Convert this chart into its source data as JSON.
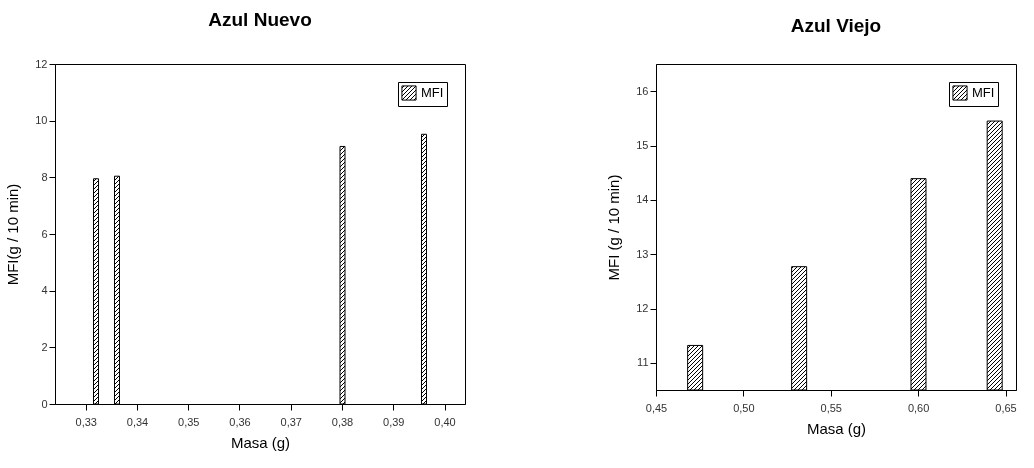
{
  "chart_data": [
    {
      "type": "bar",
      "title": "Azul Nuevo",
      "xlabel": "Masa (g)",
      "ylabel": "MFI(g / 10 min)",
      "x": [
        0.332,
        0.3361,
        0.3801,
        0.396
      ],
      "series": [
        {
          "name": "MFI",
          "color": "#000000",
          "values": [
            7.95,
            8.04,
            9.09,
            9.52
          ]
        }
      ],
      "xlim": [
        0.324,
        0.404
      ],
      "xticks": [
        {
          "value": 0.33,
          "label": "0,33"
        },
        {
          "value": 0.34,
          "label": "0,34"
        },
        {
          "value": 0.35,
          "label": "0,35"
        },
        {
          "value": 0.36,
          "label": "0,36"
        },
        {
          "value": 0.37,
          "label": "0,37"
        },
        {
          "value": 0.38,
          "label": "0,38"
        },
        {
          "value": 0.39,
          "label": "0,39"
        },
        {
          "value": 0.4,
          "label": "0,40"
        }
      ],
      "ylim": [
        0,
        12
      ],
      "yticks": [
        0,
        2,
        4,
        6,
        8,
        10,
        12
      ],
      "legend": "top right",
      "grid": false
    },
    {
      "type": "bar",
      "title": "Azul Viejo",
      "xlabel": "Masa (g)",
      "ylabel": "MFI (g / 10 min)",
      "x": [
        0.4724,
        0.5319,
        0.6002,
        0.6438
      ],
      "series": [
        {
          "name": "MFI",
          "color": "#000000",
          "values": [
            11.32,
            12.77,
            14.39,
            15.45
          ]
        }
      ],
      "xlim": [
        0.45,
        0.656
      ],
      "xticks": [
        {
          "value": 0.45,
          "label": "0,45"
        },
        {
          "value": 0.5,
          "label": "0,50"
        },
        {
          "value": 0.55,
          "label": "0,55"
        },
        {
          "value": 0.6,
          "label": "0,60"
        },
        {
          "value": 0.65,
          "label": "0,65"
        }
      ],
      "ylim": [
        10.5,
        16.5
      ],
      "yticks": [
        11,
        12,
        13,
        14,
        15,
        16
      ],
      "legend": "top right",
      "grid": false
    }
  ]
}
